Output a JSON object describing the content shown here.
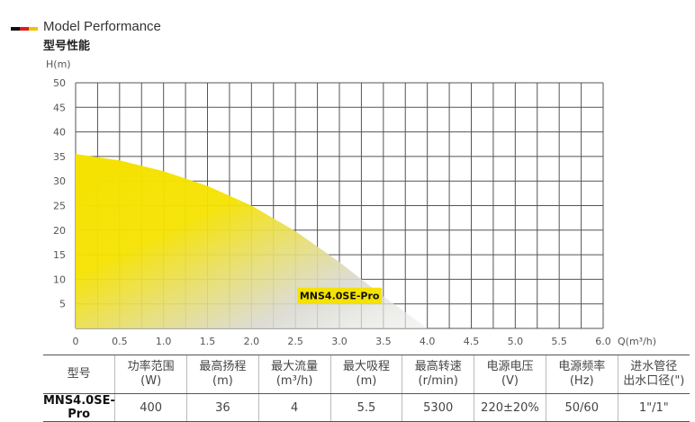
{
  "header": {
    "title_en": "Model Performance",
    "title_cn": "型号性能",
    "flag_colors": [
      "#111111",
      "#dd1d1d",
      "#f2c200"
    ]
  },
  "chart_data": {
    "type": "area",
    "title": "",
    "xlabel": "Q(m³/h)",
    "ylabel": "H(m)",
    "xlim": [
      0,
      6.0
    ],
    "ylim": [
      0,
      50
    ],
    "x_ticks": [
      "0",
      "0.5",
      "1.0",
      "1.5",
      "2.0",
      "2.5",
      "3.0",
      "3.5",
      "4.0",
      "4.5",
      "5.0",
      "5.5",
      "6.0"
    ],
    "y_ticks": [
      "5",
      "10",
      "15",
      "20",
      "25",
      "30",
      "35",
      "40",
      "45",
      "50"
    ],
    "grid": true,
    "series": [
      {
        "name": "MNS4.0SE-Pro",
        "x": [
          0,
          0.5,
          1.0,
          1.5,
          2.0,
          2.5,
          3.0,
          3.5,
          3.75,
          4.0
        ],
        "values": [
          35.5,
          34.2,
          32.0,
          29.0,
          25.0,
          19.8,
          13.5,
          6.5,
          3.3,
          0
        ],
        "color": "#f5e200"
      }
    ],
    "annotation": "MNS4.0SE-Pro"
  },
  "spec_table": {
    "headers": [
      [
        "型号",
        ""
      ],
      [
        "功率范围",
        "(W)"
      ],
      [
        "最高扬程",
        "(m)"
      ],
      [
        "最大流量",
        "(m³/h)"
      ],
      [
        "最大吸程",
        "(m)"
      ],
      [
        "最高转速",
        "(r/min)"
      ],
      [
        "电源电压",
        "(V)"
      ],
      [
        "电源频率",
        "(Hz)"
      ],
      [
        "进水管径",
        "出水口径(\")"
      ]
    ],
    "values": [
      "MNS4.0SE-Pro",
      "400",
      "36",
      "4",
      "5.5",
      "5300",
      "220±20%",
      "50/60",
      "1\"/1\""
    ]
  }
}
